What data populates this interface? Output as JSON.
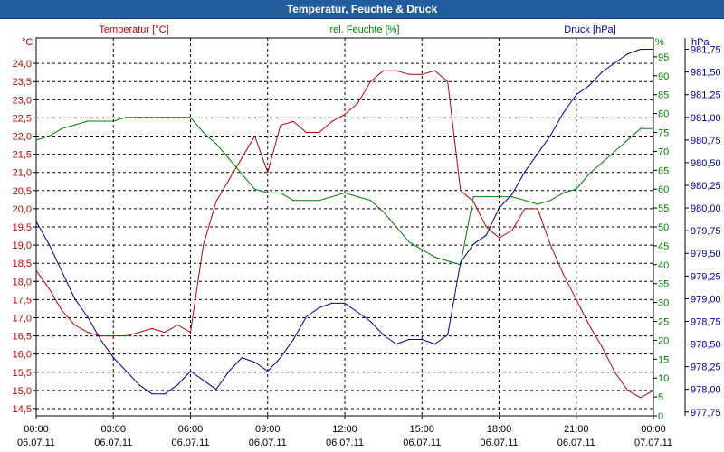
{
  "window": {
    "title": "Temperatur, Feuchte & Druck"
  },
  "colors": {
    "temperature": "#c00000",
    "humidity": "#008000",
    "pressure": "#0000a0",
    "grid": "#000000",
    "titlebar": "#235c9c"
  },
  "chart_data": {
    "type": "line",
    "title": "Temperatur, Feuchte & Druck",
    "grid": true,
    "x": {
      "min_hours": 0,
      "max_hours": 24,
      "tick_hours": [
        0,
        3,
        6,
        9,
        12,
        15,
        18,
        21,
        24
      ],
      "tick_times": [
        "00:00",
        "03:00",
        "06:00",
        "09:00",
        "12:00",
        "15:00",
        "18:00",
        "21:00",
        "00:00"
      ],
      "tick_dates": [
        "06.07.11",
        "06.07.11",
        "06.07.11",
        "06.07.11",
        "06.07.11",
        "06.07.11",
        "06.07.11",
        "06.07.11",
        "07.07.11"
      ]
    },
    "axes": {
      "left": {
        "label": "Temperatur [°C]",
        "unit": "°C",
        "min": 14.3,
        "max": 24.7,
        "ticks": [
          "14,5",
          "15,0",
          "15,5",
          "16,0",
          "16,5",
          "17,0",
          "17,5",
          "18,0",
          "18,5",
          "19,0",
          "19,5",
          "20,0",
          "20,5",
          "21,0",
          "21,5",
          "22,0",
          "22,5",
          "23,0",
          "23,5",
          "24,0"
        ]
      },
      "right1": {
        "label": "rel. Feuchte [%]",
        "unit": "%",
        "min": 0,
        "max": 100,
        "ticks": [
          "0",
          "5",
          "10",
          "15",
          "20",
          "25",
          "30",
          "35",
          "40",
          "45",
          "50",
          "55",
          "60",
          "65",
          "70",
          "75",
          "80",
          "85",
          "90",
          "95"
        ]
      },
      "right2": {
        "label": "Druck [hPa]",
        "unit": "hPa",
        "min": 977.708,
        "max": 981.875,
        "ticks": [
          "977,75",
          "978,00",
          "978,25",
          "978,50",
          "978,75",
          "979,00",
          "979,25",
          "979,50",
          "979,75",
          "980,00",
          "980,25",
          "980,50",
          "980,75",
          "981,00",
          "981,25",
          "981,50",
          "981,75"
        ]
      }
    },
    "series": [
      {
        "name": "Temperatur [°C]",
        "axis": "left",
        "x": [
          0,
          0.5,
          1,
          1.5,
          2,
          2.5,
          3,
          3.5,
          4,
          4.5,
          5,
          5.5,
          6,
          6.5,
          7,
          7.5,
          8,
          8.5,
          9,
          9.5,
          10,
          10.5,
          11,
          11.5,
          12,
          12.5,
          13,
          13.5,
          14,
          14.5,
          15,
          15.5,
          16,
          16.5,
          17,
          17.5,
          18,
          18.5,
          19,
          19.5,
          20,
          20.5,
          21,
          21.5,
          22,
          22.5,
          23,
          23.5,
          24
        ],
        "values": [
          18.3,
          17.8,
          17.2,
          16.8,
          16.6,
          16.5,
          16.5,
          16.5,
          16.6,
          16.7,
          16.6,
          16.8,
          16.6,
          19.0,
          20.2,
          20.8,
          21.4,
          22.0,
          21.0,
          22.3,
          22.4,
          22.1,
          22.1,
          22.4,
          22.6,
          22.9,
          23.5,
          23.8,
          23.8,
          23.7,
          23.7,
          23.8,
          23.5,
          20.5,
          20.2,
          19.5,
          19.2,
          19.4,
          20.0,
          20.0,
          19.0,
          18.2,
          17.5,
          16.8,
          16.2,
          15.5,
          15.0,
          14.8,
          15.0
        ]
      },
      {
        "name": "rel. Feuchte [%]",
        "axis": "right1",
        "x": [
          0,
          0.5,
          1,
          1.5,
          2,
          2.5,
          3,
          3.5,
          4,
          4.5,
          5,
          5.5,
          6,
          6.5,
          7,
          7.5,
          8,
          8.5,
          9,
          9.5,
          10,
          10.5,
          11,
          11.5,
          12,
          12.5,
          13,
          13.5,
          14,
          14.5,
          15,
          15.5,
          16,
          16.5,
          17,
          17.5,
          18,
          18.5,
          19,
          19.5,
          20,
          20.5,
          21,
          21.5,
          22,
          22.5,
          23,
          23.5,
          24
        ],
        "values": [
          73,
          74,
          76,
          77,
          78,
          78,
          78,
          79,
          79,
          79,
          79,
          79,
          79,
          75,
          72,
          68,
          64,
          60,
          59,
          59,
          57,
          57,
          57,
          58,
          59,
          58,
          57,
          54,
          50,
          46,
          44,
          42,
          41,
          40,
          58,
          58,
          58,
          58,
          57,
          56,
          57,
          59,
          60,
          64,
          67,
          70,
          73,
          76,
          76
        ]
      },
      {
        "name": "Druck [hPa]",
        "axis": "right2",
        "x": [
          0,
          0.5,
          1,
          1.5,
          2,
          2.5,
          3,
          3.5,
          4,
          4.5,
          5,
          5.5,
          6,
          6.5,
          7,
          7.5,
          8,
          8.5,
          9,
          9.5,
          10,
          10.5,
          11,
          11.5,
          12,
          12.5,
          13,
          13.5,
          14,
          14.5,
          15,
          15.5,
          16,
          16.5,
          17,
          17.5,
          18,
          18.5,
          19,
          19.5,
          20,
          20.5,
          21,
          21.5,
          22,
          22.5,
          23,
          23.5,
          24
        ],
        "values": [
          979.85,
          979.6,
          979.3,
          979.0,
          978.8,
          978.55,
          978.35,
          978.2,
          978.05,
          977.95,
          977.95,
          978.05,
          978.2,
          978.1,
          978.0,
          978.2,
          978.35,
          978.3,
          978.2,
          978.35,
          978.55,
          978.8,
          978.9,
          978.95,
          978.95,
          978.85,
          978.75,
          978.6,
          978.5,
          978.55,
          978.55,
          978.5,
          978.6,
          979.4,
          979.6,
          979.7,
          980.0,
          980.15,
          980.4,
          980.6,
          980.8,
          981.05,
          981.25,
          981.35,
          981.5,
          981.6,
          981.7,
          981.75,
          981.75
        ]
      }
    ]
  }
}
